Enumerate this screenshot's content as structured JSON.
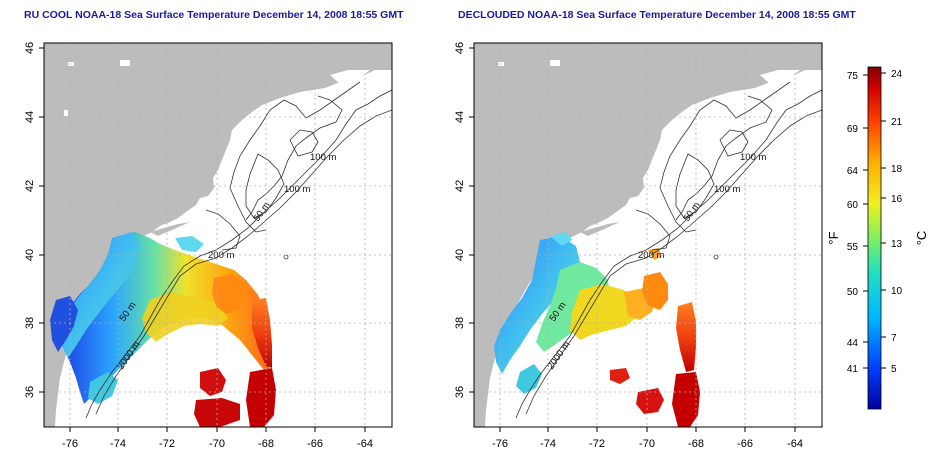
{
  "panels": [
    {
      "title": "RU COOL NOAA-18 Sea Surface Temperature December 14, 2008 18:55 GMT",
      "variant": "cool"
    },
    {
      "title": "DECLOUDED NOAA-18 Sea Surface Temperature December 14, 2008 18:55 GMT",
      "variant": "declouded"
    }
  ],
  "axes": {
    "x_ticks": [
      "-76",
      "-74",
      "-72",
      "-70",
      "-68",
      "-66",
      "-64"
    ],
    "y_ticks": [
      "46",
      "44",
      "42",
      "40",
      "38",
      "36"
    ]
  },
  "contour_labels": [
    "100 m",
    "100 m",
    "50 m",
    "200 m",
    "50 m",
    "2000 m"
  ],
  "colorbar": {
    "unit_f": "°F",
    "unit_c": "°C",
    "f_ticks": [
      "75",
      "69",
      "64",
      "60",
      "55",
      "50",
      "44",
      "41"
    ],
    "c_ticks": [
      "24",
      "21",
      "18",
      "16",
      "13",
      "10",
      "7",
      "5"
    ]
  },
  "colors": {
    "land": "#bcbcbc",
    "contour": "#333333",
    "grid": "#b0b0b0",
    "title": "#1a1aa0"
  }
}
